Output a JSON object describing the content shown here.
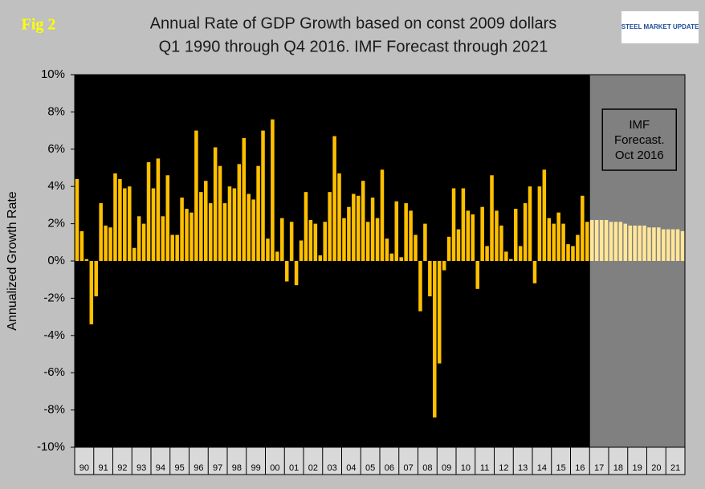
{
  "chart_data": {
    "type": "bar",
    "figure_label": "Fig 2",
    "title": "Annual Rate of GDP Growth based on const 2009 dollars",
    "subtitle": "Q1 1990 through Q4 2016. IMF Forecast through 2021",
    "logo": "STEEL MARKET UPDATE",
    "y_label": "Annualized Growth Rate",
    "annotation": [
      "IMF",
      "Forecast.",
      "Oct 2016"
    ],
    "ylim": [
      -10,
      10
    ],
    "yticks": [
      {
        "value": -10,
        "label": "-10%"
      },
      {
        "value": -8,
        "label": "-8%"
      },
      {
        "value": -6,
        "label": "-6%"
      },
      {
        "value": -4,
        "label": "-4%"
      },
      {
        "value": -2,
        "label": "-2%"
      },
      {
        "value": 0,
        "label": "0%"
      },
      {
        "value": 2,
        "label": "2%"
      },
      {
        "value": 4,
        "label": "4%"
      },
      {
        "value": 6,
        "label": "6%"
      },
      {
        "value": 8,
        "label": "8%"
      },
      {
        "value": 10,
        "label": "10%"
      }
    ],
    "categories": [
      "90",
      null,
      null,
      null,
      "91",
      null,
      null,
      null,
      "92",
      null,
      null,
      null,
      "93",
      null,
      null,
      null,
      "94",
      null,
      null,
      null,
      "95",
      null,
      null,
      null,
      "96",
      null,
      null,
      null,
      "97",
      null,
      null,
      null,
      "98",
      null,
      null,
      null,
      "99",
      null,
      null,
      null,
      "00",
      null,
      null,
      null,
      "01",
      null,
      null,
      null,
      "02",
      null,
      null,
      null,
      "03",
      null,
      null,
      null,
      "04",
      null,
      null,
      null,
      "05",
      null,
      null,
      null,
      "06",
      null,
      null,
      null,
      "07",
      null,
      null,
      null,
      "08",
      null,
      null,
      null,
      "09",
      null,
      null,
      null,
      "10",
      null,
      null,
      null,
      "11",
      null,
      null,
      null,
      "12",
      null,
      null,
      null,
      "13",
      null,
      null,
      null,
      "14",
      null,
      null,
      null,
      "15",
      null,
      null,
      null,
      "16",
      null,
      null,
      null,
      "17",
      null,
      null,
      null,
      "18",
      null,
      null,
      null,
      "19",
      null,
      null,
      null,
      "20",
      null,
      null,
      null,
      "21",
      null,
      null,
      null
    ],
    "series": [
      {
        "color": "#ffc000",
        "values": [
          4.4,
          1.6,
          0.1,
          -3.4,
          -1.9,
          3.1,
          1.9,
          1.8,
          4.7,
          4.4,
          3.9,
          4.0,
          0.7,
          2.4,
          2.0,
          5.3,
          3.9,
          5.5,
          2.4,
          4.6,
          1.4,
          1.4,
          3.4,
          2.8,
          2.6,
          7.0,
          3.7,
          4.3,
          3.1,
          6.1,
          5.1,
          3.1,
          4.0,
          3.9,
          5.2,
          6.6,
          3.6,
          3.3,
          5.1,
          7.0,
          1.2,
          7.6,
          0.5,
          2.3,
          -1.1,
          2.1,
          -1.3,
          1.1,
          3.7,
          2.2,
          2.0,
          0.3,
          2.1,
          3.7,
          6.7,
          4.7,
          2.3,
          2.9,
          3.6,
          3.5,
          4.3,
          2.1,
          3.4,
          2.3,
          4.9,
          1.2,
          0.4,
          3.2,
          0.2,
          3.1,
          2.7,
          1.4,
          -2.7,
          2.0,
          -1.9,
          -8.4,
          -5.5,
          -0.5,
          1.3,
          3.9,
          1.7,
          3.9,
          2.7,
          2.5,
          -1.5,
          2.9,
          0.8,
          4.6,
          2.7,
          1.9,
          0.5,
          0.1,
          2.8,
          0.8,
          3.1,
          4.0,
          -1.2,
          4.0,
          4.9,
          2.3,
          2.0,
          2.6,
          2.0,
          0.9,
          0.8,
          1.4,
          3.5,
          2.1,
          null,
          null,
          null,
          null,
          null,
          null,
          null,
          null,
          null,
          null,
          null,
          null,
          null,
          null,
          null,
          null,
          null,
          null,
          null,
          null
        ]
      },
      {
        "color": "#ffe699",
        "forecast": true,
        "values": [
          null,
          null,
          null,
          null,
          null,
          null,
          null,
          null,
          null,
          null,
          null,
          null,
          null,
          null,
          null,
          null,
          null,
          null,
          null,
          null,
          null,
          null,
          null,
          null,
          null,
          null,
          null,
          null,
          null,
          null,
          null,
          null,
          null,
          null,
          null,
          null,
          null,
          null,
          null,
          null,
          null,
          null,
          null,
          null,
          null,
          null,
          null,
          null,
          null,
          null,
          null,
          null,
          null,
          null,
          null,
          null,
          null,
          null,
          null,
          null,
          null,
          null,
          null,
          null,
          null,
          null,
          null,
          null,
          null,
          null,
          null,
          null,
          null,
          null,
          null,
          null,
          null,
          null,
          null,
          null,
          null,
          null,
          null,
          null,
          null,
          null,
          null,
          null,
          null,
          null,
          null,
          null,
          null,
          null,
          null,
          null,
          null,
          null,
          null,
          null,
          null,
          null,
          null,
          null,
          null,
          null,
          null,
          null,
          2.2,
          2.2,
          2.2,
          2.2,
          2.1,
          2.1,
          2.1,
          2.0,
          1.9,
          1.9,
          1.9,
          1.9,
          1.8,
          1.8,
          1.8,
          1.7,
          1.7,
          1.7,
          1.7,
          1.6
        ]
      }
    ]
  }
}
